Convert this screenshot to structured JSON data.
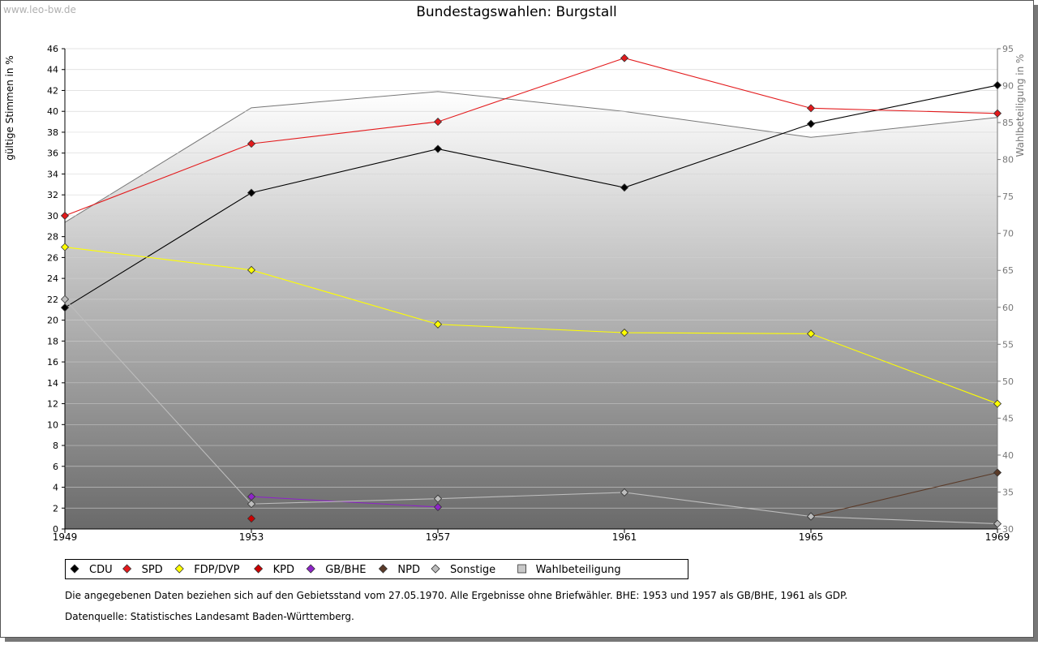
{
  "watermark": "www.leo-bw.de",
  "chart_data": {
    "type": "line",
    "title": "Bundestagswahlen: Burgstall",
    "ylabel": "gültige Stimmen in %",
    "y2label": "Wahlbeteiligung in %",
    "x": [
      1949,
      1953,
      1957,
      1961,
      1965,
      1969
    ],
    "ylim": [
      0,
      46
    ],
    "y2lim": [
      30,
      95
    ],
    "yticks": [
      0,
      2,
      4,
      6,
      8,
      10,
      12,
      14,
      16,
      18,
      20,
      22,
      24,
      26,
      28,
      30,
      32,
      34,
      36,
      38,
      40,
      42,
      44,
      46
    ],
    "y2ticks": [
      30,
      35,
      40,
      45,
      50,
      55,
      60,
      65,
      70,
      75,
      80,
      85,
      90,
      95
    ],
    "grid": true,
    "series": [
      {
        "name": "CDU",
        "color": "#000000",
        "values": [
          21.2,
          32.2,
          36.4,
          32.7,
          38.8,
          42.5
        ]
      },
      {
        "name": "SPD",
        "color": "#e31a1c",
        "values": [
          30.0,
          36.9,
          39.0,
          45.1,
          40.3,
          39.8
        ]
      },
      {
        "name": "FDP/DVP",
        "color": "#ffff00",
        "values": [
          27.0,
          24.8,
          19.6,
          18.8,
          18.7,
          12.0
        ]
      },
      {
        "name": "KPD",
        "color": "#cc0000",
        "values": [
          null,
          1.0,
          null,
          null,
          null,
          null
        ]
      },
      {
        "name": "GB/BHE",
        "color": "#8e24c8",
        "values": [
          null,
          3.1,
          2.1,
          null,
          null,
          null
        ]
      },
      {
        "name": "NPD",
        "color": "#5a3a28",
        "values": [
          null,
          null,
          null,
          null,
          1.2,
          5.4
        ]
      },
      {
        "name": "Sonstige",
        "color": "#bdbdbd",
        "values": [
          22.0,
          2.4,
          2.9,
          3.5,
          1.2,
          0.5
        ]
      }
    ],
    "turnout": {
      "name": "Wahlbeteiligung",
      "values": [
        71.5,
        87.0,
        89.2,
        86.5,
        83.0,
        85.7
      ]
    }
  },
  "footnote": "Die angegebenen Daten beziehen sich auf den Gebietsstand vom 27.05.1970. Alle Ergebnisse ohne Briefwähler. BHE: 1953 und 1957 als GB/BHE, 1961 als GDP.",
  "source": "Datenquelle: Statistisches Landesamt Baden-Württemberg."
}
